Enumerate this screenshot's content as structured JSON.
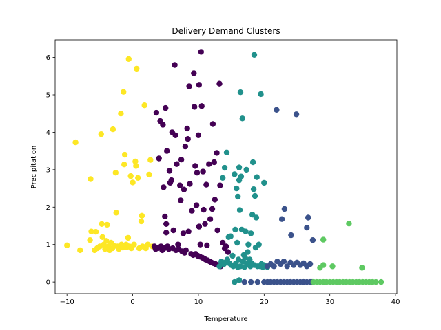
{
  "chart_data": {
    "type": "scatter",
    "title": "Delivery Demand Clusters",
    "xlabel": "Temperature",
    "ylabel": "Precipitation",
    "xlim": [
      -11.8,
      40.2
    ],
    "ylim": [
      -0.31,
      6.47
    ],
    "xticks": [
      -10,
      0,
      10,
      20,
      30,
      40
    ],
    "xtick_labels": [
      "−10",
      "0",
      "10",
      "20",
      "30",
      "40"
    ],
    "yticks": [
      0,
      1,
      2,
      3,
      4,
      5,
      6
    ],
    "ytick_labels": [
      "0",
      "1",
      "2",
      "3",
      "4",
      "5",
      "6"
    ],
    "grid": false,
    "legend": "none",
    "series": [
      {
        "color": "#fde725",
        "points": [
          [
            -10,
            0.98
          ],
          [
            -8,
            0.85
          ],
          [
            -8.7,
            3.73
          ],
          [
            -6.5,
            1.12
          ],
          [
            -6.4,
            2.75
          ],
          [
            -6.3,
            1.35
          ],
          [
            -5.8,
            0.85
          ],
          [
            -5.6,
            1.34
          ],
          [
            -5.4,
            0.9
          ],
          [
            -5,
            0.95
          ],
          [
            -4.8,
            3.95
          ],
          [
            -4.7,
            1.55
          ],
          [
            -4.6,
            1.2
          ],
          [
            -4.4,
            1.0
          ],
          [
            -4.2,
            0.88
          ],
          [
            -4.0,
            1.1
          ],
          [
            -3.9,
            1.53
          ],
          [
            -3.7,
            0.95
          ],
          [
            -3.5,
            0.85
          ],
          [
            -3.3,
            1.05
          ],
          [
            -3.1,
            0.9
          ],
          [
            -3.0,
            4.08
          ],
          [
            -2.8,
            0.96
          ],
          [
            -2.6,
            2.92
          ],
          [
            -2.5,
            1.85
          ],
          [
            -2.3,
            0.95
          ],
          [
            -2.1,
            0.88
          ],
          [
            -1.8,
            4.5
          ],
          [
            -1.7,
            1.0
          ],
          [
            -1.5,
            0.92
          ],
          [
            -1.4,
            5.08
          ],
          [
            -1.3,
            3.14
          ],
          [
            -1.2,
            3.4
          ],
          [
            -1.0,
            1.0
          ],
          [
            -0.9,
            0.93
          ],
          [
            -0.7,
            1.18
          ],
          [
            -0.6,
            5.96
          ],
          [
            -0.5,
            0.95
          ],
          [
            -0.3,
            2.83
          ],
          [
            -0.2,
            0.9
          ],
          [
            0,
            2.66
          ],
          [
            0.2,
            1.0
          ],
          [
            0.4,
            3.22
          ],
          [
            0.5,
            3.1
          ],
          [
            0.6,
            5.7
          ],
          [
            0.8,
            2.78
          ],
          [
            1.0,
            0.9
          ],
          [
            1.3,
            1.62
          ],
          [
            1.4,
            1.77
          ],
          [
            1.5,
            0.95
          ],
          [
            1.8,
            4.72
          ],
          [
            2.0,
            0.9
          ],
          [
            2.3,
            1.0
          ],
          [
            2.5,
            2.87
          ],
          [
            2.7,
            3.26
          ],
          [
            3.0,
            0.95
          ]
        ]
      },
      {
        "color": "#440154",
        "points": [
          [
            3.3,
            0.95
          ],
          [
            3.5,
            0.88
          ],
          [
            3.6,
            4.52
          ],
          [
            3.8,
            0.9
          ],
          [
            4.0,
            3.3
          ],
          [
            4.2,
            4.3
          ],
          [
            4.3,
            0.95
          ],
          [
            4.5,
            0.85
          ],
          [
            4.6,
            4.2
          ],
          [
            4.7,
            2.53
          ],
          [
            4.8,
            0.9
          ],
          [
            4.9,
            1.75
          ],
          [
            5.0,
            4.65
          ],
          [
            5.1,
            1.55
          ],
          [
            5.1,
            1.32
          ],
          [
            5.2,
            3.5
          ],
          [
            5.3,
            0.95
          ],
          [
            5.5,
            0.88
          ],
          [
            5.6,
            2.97
          ],
          [
            5.7,
            2.65
          ],
          [
            5.9,
            2.72
          ],
          [
            6.0,
            4.0
          ],
          [
            6.1,
            0.9
          ],
          [
            6.2,
            1.38
          ],
          [
            6.4,
            5.8
          ],
          [
            6.5,
            3.92
          ],
          [
            6.6,
            0.85
          ],
          [
            6.7,
            3.15
          ],
          [
            6.9,
            1.0
          ],
          [
            7.0,
            0.88
          ],
          [
            7.2,
            2.58
          ],
          [
            7.3,
            2.18
          ],
          [
            7.4,
            3.27
          ],
          [
            7.5,
            0.82
          ],
          [
            7.7,
            1.3
          ],
          [
            7.8,
            2.47
          ],
          [
            7.9,
            0.78
          ],
          [
            8.0,
            3.62
          ],
          [
            8.1,
            0.85
          ],
          [
            8.3,
            4.1
          ],
          [
            8.4,
            3.82
          ],
          [
            8.5,
            1.35
          ],
          [
            8.6,
            5.23
          ],
          [
            8.7,
            2.62
          ],
          [
            8.9,
            0.75
          ],
          [
            9.0,
            1.9
          ],
          [
            9.2,
            0.72
          ],
          [
            9.3,
            5.58
          ],
          [
            9.4,
            4.68
          ],
          [
            9.5,
            3.1
          ],
          [
            9.6,
            0.75
          ],
          [
            9.7,
            2.05
          ],
          [
            9.8,
            2.92
          ],
          [
            9.9,
            0.7
          ],
          [
            10.0,
            3.92
          ],
          [
            10.1,
            5.27
          ],
          [
            10.1,
            1.48
          ],
          [
            10.2,
            0.68
          ],
          [
            10.3,
            1.0
          ],
          [
            10.4,
            6.15
          ],
          [
            10.5,
            4.7
          ],
          [
            10.6,
            0.65
          ],
          [
            10.7,
            2.95
          ],
          [
            10.8,
            1.93
          ],
          [
            10.9,
            0.62
          ],
          [
            11.0,
            1.55
          ],
          [
            11.1,
            0.6
          ],
          [
            11.2,
            2.6
          ],
          [
            11.3,
            0.98
          ],
          [
            11.4,
            0.58
          ],
          [
            11.6,
            3.15
          ],
          [
            11.7,
            0.55
          ],
          [
            11.8,
            1.68
          ],
          [
            12.0,
            0.52
          ],
          [
            12.1,
            1.95
          ],
          [
            12.2,
            4.22
          ],
          [
            12.3,
            0.5
          ],
          [
            12.4,
            3.2
          ],
          [
            12.5,
            2.2
          ],
          [
            12.6,
            0.48
          ],
          [
            12.8,
            3.45
          ],
          [
            12.9,
            1.38
          ],
          [
            13.0,
            0.45
          ],
          [
            13.2,
            5.3
          ],
          [
            13.3,
            2.58
          ],
          [
            13.4,
            0.42
          ],
          [
            13.7,
            1.05
          ],
          [
            14.0,
            0.9
          ],
          [
            14.2,
            0.95
          ],
          [
            14.5,
            0.8
          ]
        ]
      },
      {
        "color": "#21918c",
        "points": [
          [
            13.2,
            0.42
          ],
          [
            13.5,
            0.55
          ],
          [
            13.7,
            2.78
          ],
          [
            13.9,
            0.48
          ],
          [
            14.0,
            3.05
          ],
          [
            14.1,
            0.52
          ],
          [
            14.3,
            3.46
          ],
          [
            14.4,
            0.6
          ],
          [
            14.6,
            1.2
          ],
          [
            14.7,
            0.5
          ],
          [
            14.9,
            1.22
          ],
          [
            15.0,
            0.45
          ],
          [
            15.2,
            0.7
          ],
          [
            15.3,
            0.42
          ],
          [
            15.5,
            2.88
          ],
          [
            15.6,
            1.4
          ],
          [
            15.7,
            0.5
          ],
          [
            15.8,
            2.5
          ],
          [
            15.9,
            1.05
          ],
          [
            16.0,
            0.4
          ],
          [
            16.0,
            2.28
          ],
          [
            16.1,
            0.6
          ],
          [
            16.2,
            2.72
          ],
          [
            16.2,
            3.06
          ],
          [
            16.3,
            1.92
          ],
          [
            16.4,
            5.07
          ],
          [
            16.4,
            0.42
          ],
          [
            16.5,
            2.82
          ],
          [
            16.6,
            1.4
          ],
          [
            16.7,
            4.37
          ],
          [
            16.8,
            0.55
          ],
          [
            16.9,
            0.72
          ],
          [
            17.0,
            0.4
          ],
          [
            17.1,
            0.65
          ],
          [
            17.2,
            1.35
          ],
          [
            17.3,
            3.0
          ],
          [
            17.4,
            0.48
          ],
          [
            17.5,
            0.8
          ],
          [
            17.6,
            1.0
          ],
          [
            17.7,
            0.45
          ],
          [
            17.8,
            0.6
          ],
          [
            17.9,
            0.42
          ],
          [
            18.0,
            1.3
          ],
          [
            18.1,
            0.5
          ],
          [
            18.2,
            1.8
          ],
          [
            18.3,
            3.2
          ],
          [
            18.4,
            2.48
          ],
          [
            18.5,
            0.45
          ],
          [
            18.5,
            6.07
          ],
          [
            18.6,
            2.3
          ],
          [
            18.7,
            0.92
          ],
          [
            18.8,
            1.72
          ],
          [
            18.9,
            2.8
          ],
          [
            19.0,
            0.42
          ],
          [
            19.2,
            1.0
          ],
          [
            19.4,
            0.42
          ],
          [
            19.5,
            5.02
          ],
          [
            19.6,
            0.48
          ],
          [
            19.8,
            0.4
          ],
          [
            20.0,
            0.45
          ],
          [
            20.0,
            2.65
          ],
          [
            20.5,
            0.4
          ],
          [
            16.2,
            0.05
          ],
          [
            15.5,
            0
          ]
        ]
      },
      {
        "color": "#3b528b",
        "points": [
          [
            17,
            0
          ],
          [
            18,
            0
          ],
          [
            19,
            0
          ],
          [
            20,
            0
          ],
          [
            20.5,
            0
          ],
          [
            21,
            0
          ],
          [
            21.5,
            0
          ],
          [
            22,
            0
          ],
          [
            22.5,
            0
          ],
          [
            23,
            0
          ],
          [
            23.5,
            0
          ],
          [
            24,
            0
          ],
          [
            24.5,
            0
          ],
          [
            25,
            0
          ],
          [
            25.5,
            0
          ],
          [
            26,
            0
          ],
          [
            26.5,
            0
          ],
          [
            27,
            0
          ],
          [
            27.3,
            0
          ],
          [
            20.5,
            0.42
          ],
          [
            21.0,
            0.48
          ],
          [
            21.5,
            0.42
          ],
          [
            22.0,
            0.55
          ],
          [
            22.5,
            0.48
          ],
          [
            23.0,
            0.55
          ],
          [
            23.5,
            0.42
          ],
          [
            24.0,
            0.52
          ],
          [
            24.5,
            0.45
          ],
          [
            25.0,
            0.52
          ],
          [
            25.5,
            0.45
          ],
          [
            26.0,
            0.5
          ],
          [
            26.5,
            0.42
          ],
          [
            27.0,
            0.48
          ],
          [
            21.9,
            4.6
          ],
          [
            24.9,
            4.48
          ],
          [
            23.1,
            1.95
          ],
          [
            22.7,
            1.68
          ],
          [
            26.7,
            1.72
          ],
          [
            26.5,
            1.45
          ],
          [
            24.1,
            1.25
          ],
          [
            27.4,
            1.12
          ]
        ]
      },
      {
        "color": "#5ec962",
        "points": [
          [
            27.5,
            0
          ],
          [
            28,
            0
          ],
          [
            28.5,
            0
          ],
          [
            29,
            0
          ],
          [
            29.5,
            0
          ],
          [
            30,
            0
          ],
          [
            30.5,
            0
          ],
          [
            31,
            0
          ],
          [
            31.5,
            0
          ],
          [
            32,
            0
          ],
          [
            32.5,
            0
          ],
          [
            33,
            0
          ],
          [
            33.5,
            0
          ],
          [
            34,
            0
          ],
          [
            34.5,
            0
          ],
          [
            35,
            0
          ],
          [
            35.5,
            0
          ],
          [
            36,
            0
          ],
          [
            36.5,
            0
          ],
          [
            37,
            0
          ],
          [
            37.8,
            0
          ],
          [
            28.5,
            0.38
          ],
          [
            29.0,
            0.45
          ],
          [
            30.4,
            0.42
          ],
          [
            29.0,
            1.13
          ],
          [
            32.9,
            1.56
          ],
          [
            34.9,
            0.38
          ]
        ]
      }
    ]
  }
}
